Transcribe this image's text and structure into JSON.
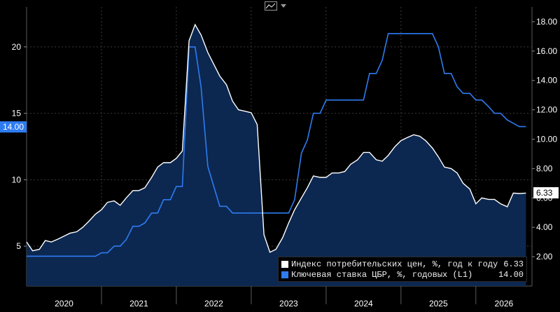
{
  "chart_data": {
    "type": "line",
    "title": "",
    "xlabel": "",
    "ylabel": "",
    "colors": {
      "cpi": "#ffffff",
      "cpi_fill": "#0d2a55",
      "rate": "#2e7bf0",
      "background": "#000000",
      "grid": "#3a3a3a"
    },
    "left_axis": {
      "range": [
        2.0,
        23.0
      ],
      "ticks": [
        "5",
        "10",
        "15",
        "20"
      ],
      "tick_values": [
        5,
        10,
        15,
        20
      ]
    },
    "right_axis": {
      "range": [
        0.0,
        19.0
      ],
      "ticks": [
        "2.00",
        "4.00",
        "6.00",
        "8.00",
        "10.00",
        "12.00",
        "14.00",
        "16.00",
        "18.00"
      ],
      "tick_values": [
        2,
        4,
        6,
        8,
        10,
        12,
        14,
        16,
        18
      ]
    },
    "x_axis": {
      "range": [
        2020.0,
        2026.75
      ],
      "ticks": [
        "2020",
        "2021",
        "2022",
        "2023",
        "2024",
        "2025",
        "2026"
      ]
    },
    "series": [
      {
        "name": "Индекс потребительских цен, %, год к году (R1)",
        "axis": "right",
        "last_value": "6.33",
        "points": [
          [
            2020.0,
            3.0
          ],
          [
            2020.08,
            2.4
          ],
          [
            2020.17,
            2.5
          ],
          [
            2020.25,
            3.1
          ],
          [
            2020.33,
            3.0
          ],
          [
            2020.42,
            3.2
          ],
          [
            2020.5,
            3.4
          ],
          [
            2020.58,
            3.6
          ],
          [
            2020.67,
            3.7
          ],
          [
            2020.75,
            4.0
          ],
          [
            2020.83,
            4.4
          ],
          [
            2020.92,
            4.9
          ],
          [
            2021.0,
            5.2
          ],
          [
            2021.08,
            5.7
          ],
          [
            2021.17,
            5.8
          ],
          [
            2021.25,
            5.5
          ],
          [
            2021.33,
            6.0
          ],
          [
            2021.42,
            6.5
          ],
          [
            2021.5,
            6.5
          ],
          [
            2021.58,
            6.7
          ],
          [
            2021.67,
            7.4
          ],
          [
            2021.75,
            8.1
          ],
          [
            2021.83,
            8.4
          ],
          [
            2021.92,
            8.4
          ],
          [
            2022.0,
            8.7
          ],
          [
            2022.08,
            9.2
          ],
          [
            2022.17,
            16.7
          ],
          [
            2022.25,
            17.8
          ],
          [
            2022.33,
            17.1
          ],
          [
            2022.42,
            15.9
          ],
          [
            2022.5,
            15.1
          ],
          [
            2022.58,
            14.3
          ],
          [
            2022.67,
            13.7
          ],
          [
            2022.75,
            12.6
          ],
          [
            2022.83,
            12.0
          ],
          [
            2022.92,
            11.9
          ],
          [
            2023.0,
            11.8
          ],
          [
            2023.08,
            11.0
          ],
          [
            2023.17,
            3.5
          ],
          [
            2023.25,
            2.3
          ],
          [
            2023.33,
            2.5
          ],
          [
            2023.42,
            3.3
          ],
          [
            2023.5,
            4.3
          ],
          [
            2023.58,
            5.2
          ],
          [
            2023.67,
            6.0
          ],
          [
            2023.75,
            6.7
          ],
          [
            2023.83,
            7.5
          ],
          [
            2023.92,
            7.4
          ],
          [
            2024.0,
            7.4
          ],
          [
            2024.08,
            7.7
          ],
          [
            2024.17,
            7.7
          ],
          [
            2024.25,
            7.8
          ],
          [
            2024.33,
            8.3
          ],
          [
            2024.42,
            8.6
          ],
          [
            2024.5,
            9.1
          ],
          [
            2024.58,
            9.1
          ],
          [
            2024.67,
            8.6
          ],
          [
            2024.75,
            8.5
          ],
          [
            2024.83,
            8.9
          ],
          [
            2024.92,
            9.5
          ],
          [
            2025.0,
            9.9
          ],
          [
            2025.08,
            10.1
          ],
          [
            2025.17,
            10.3
          ],
          [
            2025.25,
            10.2
          ],
          [
            2025.33,
            9.9
          ],
          [
            2025.42,
            9.4
          ],
          [
            2025.5,
            8.8
          ],
          [
            2025.58,
            8.1
          ],
          [
            2025.67,
            8.0
          ],
          [
            2025.75,
            7.7
          ],
          [
            2025.83,
            7.0
          ],
          [
            2025.92,
            6.6
          ],
          [
            2026.0,
            5.6
          ],
          [
            2026.08,
            6.0
          ],
          [
            2026.17,
            5.9
          ],
          [
            2026.25,
            5.9
          ],
          [
            2026.33,
            5.6
          ],
          [
            2026.42,
            5.4
          ],
          [
            2026.5,
            6.33
          ],
          [
            2026.58,
            6.3
          ],
          [
            2026.67,
            6.33
          ]
        ]
      },
      {
        "name": "Ключевая ставка ЦБР, %, годовых (L1)",
        "axis": "left",
        "last_value": "14.00",
        "points": [
          [
            2020.0,
            4.25
          ],
          [
            2020.08,
            4.25
          ],
          [
            2020.17,
            4.25
          ],
          [
            2020.25,
            4.25
          ],
          [
            2020.33,
            4.25
          ],
          [
            2020.42,
            4.25
          ],
          [
            2020.5,
            4.25
          ],
          [
            2020.58,
            4.25
          ],
          [
            2020.67,
            4.25
          ],
          [
            2020.75,
            4.25
          ],
          [
            2020.83,
            4.25
          ],
          [
            2020.92,
            4.25
          ],
          [
            2021.0,
            4.5
          ],
          [
            2021.08,
            4.5
          ],
          [
            2021.17,
            5.0
          ],
          [
            2021.25,
            5.0
          ],
          [
            2021.33,
            5.5
          ],
          [
            2021.42,
            6.5
          ],
          [
            2021.5,
            6.5
          ],
          [
            2021.58,
            6.75
          ],
          [
            2021.67,
            7.5
          ],
          [
            2021.75,
            7.5
          ],
          [
            2021.83,
            8.5
          ],
          [
            2021.92,
            8.5
          ],
          [
            2022.0,
            9.5
          ],
          [
            2022.08,
            9.5
          ],
          [
            2022.17,
            20.0
          ],
          [
            2022.25,
            20.0
          ],
          [
            2022.33,
            17.0
          ],
          [
            2022.42,
            11.0
          ],
          [
            2022.5,
            9.5
          ],
          [
            2022.58,
            8.0
          ],
          [
            2022.67,
            8.0
          ],
          [
            2022.75,
            7.5
          ],
          [
            2022.83,
            7.5
          ],
          [
            2022.92,
            7.5
          ],
          [
            2023.0,
            7.5
          ],
          [
            2023.08,
            7.5
          ],
          [
            2023.17,
            7.5
          ],
          [
            2023.25,
            7.5
          ],
          [
            2023.33,
            7.5
          ],
          [
            2023.42,
            7.5
          ],
          [
            2023.5,
            7.5
          ],
          [
            2023.58,
            8.5
          ],
          [
            2023.67,
            12.0
          ],
          [
            2023.75,
            13.0
          ],
          [
            2023.83,
            15.0
          ],
          [
            2023.92,
            15.0
          ],
          [
            2024.0,
            16.0
          ],
          [
            2024.08,
            16.0
          ],
          [
            2024.17,
            16.0
          ],
          [
            2024.25,
            16.0
          ],
          [
            2024.33,
            16.0
          ],
          [
            2024.42,
            16.0
          ],
          [
            2024.5,
            16.0
          ],
          [
            2024.58,
            18.0
          ],
          [
            2024.67,
            18.0
          ],
          [
            2024.75,
            19.0
          ],
          [
            2024.83,
            21.0
          ],
          [
            2024.92,
            21.0
          ],
          [
            2025.0,
            21.0
          ],
          [
            2025.08,
            21.0
          ],
          [
            2025.17,
            21.0
          ],
          [
            2025.25,
            21.0
          ],
          [
            2025.33,
            21.0
          ],
          [
            2025.42,
            21.0
          ],
          [
            2025.5,
            20.0
          ],
          [
            2025.58,
            18.0
          ],
          [
            2025.67,
            18.0
          ],
          [
            2025.75,
            17.0
          ],
          [
            2025.83,
            16.5
          ],
          [
            2025.92,
            16.5
          ],
          [
            2026.0,
            16.0
          ],
          [
            2026.08,
            16.0
          ],
          [
            2026.17,
            15.5
          ],
          [
            2026.25,
            15.0
          ],
          [
            2026.33,
            15.0
          ],
          [
            2026.42,
            14.5
          ],
          [
            2026.5,
            14.25
          ],
          [
            2026.58,
            14.0
          ],
          [
            2026.67,
            14.0
          ]
        ]
      }
    ]
  },
  "legend": {
    "items": [
      {
        "label": "Индекс потребительских цен, %, год к году (R1)",
        "value": "6.33",
        "color": "#ffffff"
      },
      {
        "label": "Ключевая ставка ЦБР, %, годовых (L1)",
        "value": "14.00",
        "color": "#2e7bf0"
      }
    ]
  },
  "badges": {
    "left_last": "14.00",
    "right_last": "6.33"
  },
  "toolbar": {
    "icon": "line-chart-icon",
    "dropdown_icon": "caret-down-icon"
  }
}
